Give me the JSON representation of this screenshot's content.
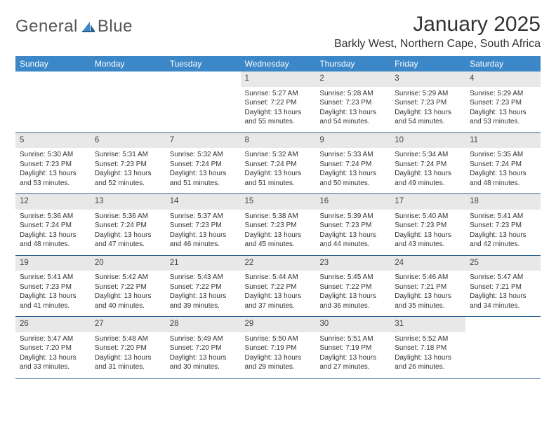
{
  "brand": {
    "word1": "General",
    "word2": "Blue"
  },
  "title": "January 2025",
  "location": "Barkly West, Northern Cape, South Africa",
  "colors": {
    "header_bg": "#3b87c8",
    "header_fg": "#ffffff",
    "daynum_bg": "#e8e8e8",
    "row_border": "#2d5f8f",
    "text": "#333333",
    "page_bg": "#ffffff"
  },
  "typography": {
    "title_fontsize": 30,
    "location_fontsize": 16,
    "weekday_fontsize": 12,
    "daynum_fontsize": 11.5,
    "cell_fontsize": 10
  },
  "layout": {
    "columns": 7,
    "weeks": 5
  },
  "weekdays": [
    "Sunday",
    "Monday",
    "Tuesday",
    "Wednesday",
    "Thursday",
    "Friday",
    "Saturday"
  ],
  "weeks": [
    [
      null,
      null,
      null,
      {
        "n": "1",
        "sunrise": "Sunrise: 5:27 AM",
        "sunset": "Sunset: 7:22 PM",
        "daylight": "Daylight: 13 hours and 55 minutes."
      },
      {
        "n": "2",
        "sunrise": "Sunrise: 5:28 AM",
        "sunset": "Sunset: 7:23 PM",
        "daylight": "Daylight: 13 hours and 54 minutes."
      },
      {
        "n": "3",
        "sunrise": "Sunrise: 5:29 AM",
        "sunset": "Sunset: 7:23 PM",
        "daylight": "Daylight: 13 hours and 54 minutes."
      },
      {
        "n": "4",
        "sunrise": "Sunrise: 5:29 AM",
        "sunset": "Sunset: 7:23 PM",
        "daylight": "Daylight: 13 hours and 53 minutes."
      }
    ],
    [
      {
        "n": "5",
        "sunrise": "Sunrise: 5:30 AM",
        "sunset": "Sunset: 7:23 PM",
        "daylight": "Daylight: 13 hours and 53 minutes."
      },
      {
        "n": "6",
        "sunrise": "Sunrise: 5:31 AM",
        "sunset": "Sunset: 7:23 PM",
        "daylight": "Daylight: 13 hours and 52 minutes."
      },
      {
        "n": "7",
        "sunrise": "Sunrise: 5:32 AM",
        "sunset": "Sunset: 7:24 PM",
        "daylight": "Daylight: 13 hours and 51 minutes."
      },
      {
        "n": "8",
        "sunrise": "Sunrise: 5:32 AM",
        "sunset": "Sunset: 7:24 PM",
        "daylight": "Daylight: 13 hours and 51 minutes."
      },
      {
        "n": "9",
        "sunrise": "Sunrise: 5:33 AM",
        "sunset": "Sunset: 7:24 PM",
        "daylight": "Daylight: 13 hours and 50 minutes."
      },
      {
        "n": "10",
        "sunrise": "Sunrise: 5:34 AM",
        "sunset": "Sunset: 7:24 PM",
        "daylight": "Daylight: 13 hours and 49 minutes."
      },
      {
        "n": "11",
        "sunrise": "Sunrise: 5:35 AM",
        "sunset": "Sunset: 7:24 PM",
        "daylight": "Daylight: 13 hours and 48 minutes."
      }
    ],
    [
      {
        "n": "12",
        "sunrise": "Sunrise: 5:36 AM",
        "sunset": "Sunset: 7:24 PM",
        "daylight": "Daylight: 13 hours and 48 minutes."
      },
      {
        "n": "13",
        "sunrise": "Sunrise: 5:36 AM",
        "sunset": "Sunset: 7:24 PM",
        "daylight": "Daylight: 13 hours and 47 minutes."
      },
      {
        "n": "14",
        "sunrise": "Sunrise: 5:37 AM",
        "sunset": "Sunset: 7:23 PM",
        "daylight": "Daylight: 13 hours and 46 minutes."
      },
      {
        "n": "15",
        "sunrise": "Sunrise: 5:38 AM",
        "sunset": "Sunset: 7:23 PM",
        "daylight": "Daylight: 13 hours and 45 minutes."
      },
      {
        "n": "16",
        "sunrise": "Sunrise: 5:39 AM",
        "sunset": "Sunset: 7:23 PM",
        "daylight": "Daylight: 13 hours and 44 minutes."
      },
      {
        "n": "17",
        "sunrise": "Sunrise: 5:40 AM",
        "sunset": "Sunset: 7:23 PM",
        "daylight": "Daylight: 13 hours and 43 minutes."
      },
      {
        "n": "18",
        "sunrise": "Sunrise: 5:41 AM",
        "sunset": "Sunset: 7:23 PM",
        "daylight": "Daylight: 13 hours and 42 minutes."
      }
    ],
    [
      {
        "n": "19",
        "sunrise": "Sunrise: 5:41 AM",
        "sunset": "Sunset: 7:23 PM",
        "daylight": "Daylight: 13 hours and 41 minutes."
      },
      {
        "n": "20",
        "sunrise": "Sunrise: 5:42 AM",
        "sunset": "Sunset: 7:22 PM",
        "daylight": "Daylight: 13 hours and 40 minutes."
      },
      {
        "n": "21",
        "sunrise": "Sunrise: 5:43 AM",
        "sunset": "Sunset: 7:22 PM",
        "daylight": "Daylight: 13 hours and 39 minutes."
      },
      {
        "n": "22",
        "sunrise": "Sunrise: 5:44 AM",
        "sunset": "Sunset: 7:22 PM",
        "daylight": "Daylight: 13 hours and 37 minutes."
      },
      {
        "n": "23",
        "sunrise": "Sunrise: 5:45 AM",
        "sunset": "Sunset: 7:22 PM",
        "daylight": "Daylight: 13 hours and 36 minutes."
      },
      {
        "n": "24",
        "sunrise": "Sunrise: 5:46 AM",
        "sunset": "Sunset: 7:21 PM",
        "daylight": "Daylight: 13 hours and 35 minutes."
      },
      {
        "n": "25",
        "sunrise": "Sunrise: 5:47 AM",
        "sunset": "Sunset: 7:21 PM",
        "daylight": "Daylight: 13 hours and 34 minutes."
      }
    ],
    [
      {
        "n": "26",
        "sunrise": "Sunrise: 5:47 AM",
        "sunset": "Sunset: 7:20 PM",
        "daylight": "Daylight: 13 hours and 33 minutes."
      },
      {
        "n": "27",
        "sunrise": "Sunrise: 5:48 AM",
        "sunset": "Sunset: 7:20 PM",
        "daylight": "Daylight: 13 hours and 31 minutes."
      },
      {
        "n": "28",
        "sunrise": "Sunrise: 5:49 AM",
        "sunset": "Sunset: 7:20 PM",
        "daylight": "Daylight: 13 hours and 30 minutes."
      },
      {
        "n": "29",
        "sunrise": "Sunrise: 5:50 AM",
        "sunset": "Sunset: 7:19 PM",
        "daylight": "Daylight: 13 hours and 29 minutes."
      },
      {
        "n": "30",
        "sunrise": "Sunrise: 5:51 AM",
        "sunset": "Sunset: 7:19 PM",
        "daylight": "Daylight: 13 hours and 27 minutes."
      },
      {
        "n": "31",
        "sunrise": "Sunrise: 5:52 AM",
        "sunset": "Sunset: 7:18 PM",
        "daylight": "Daylight: 13 hours and 26 minutes."
      },
      null
    ]
  ]
}
